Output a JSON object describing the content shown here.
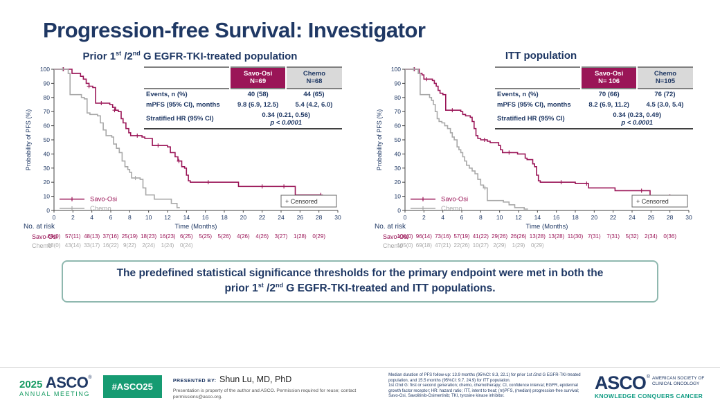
{
  "slide": {
    "title": "Progression-free Survival: Investigator"
  },
  "colors": {
    "navy": "#1F3864",
    "maroon": "#9A1557",
    "chemo_gray": "#A8A8A8",
    "header_gray": "#D9D9D9",
    "green": "#169B72",
    "teal": "#0E9B82"
  },
  "panels": [
    {
      "subtitle_parts": {
        "a": "Prior 1",
        "sup1": "st",
        "b": " /2",
        "sup2": "nd",
        "c": " G EGFR-TKI-treated population"
      },
      "table": {
        "col1": {
          "name": "Savo-Osi",
          "n": "N=69"
        },
        "col2": {
          "name": "Chemo",
          "n": "N=68"
        },
        "rows": [
          {
            "label": "Events, n (%)",
            "v1": "40 (58)",
            "v2": "44 (65)"
          },
          {
            "label": "mPFS (95% CI), months",
            "v1": "9.8 (6.9, 12.5)",
            "v2": "5.4 (4.2, 6.0)"
          },
          {
            "label": "Stratified HR (95% CI)",
            "span": "0.34 (0.21, 0.56)",
            "p": "p < 0.0001"
          }
        ]
      }
    },
    {
      "subtitle_parts": {
        "c": "ITT population"
      },
      "table": {
        "col1": {
          "name": "Savo-Osi",
          "n": "N= 106"
        },
        "col2": {
          "name": "Chemo",
          "n": "N=105"
        },
        "rows": [
          {
            "label": "Events, n (%)",
            "v1": "70 (66)",
            "v2": "76 (72)"
          },
          {
            "label": "mPFS (95% CI), months",
            "v1": "8.2 (6.9, 11.2)",
            "v2": "4.5 (3.0, 5.4)"
          },
          {
            "label": "Stratified HR (95% CI)",
            "span": "0.34 (0.23, 0.49)",
            "p": "p < 0.0001"
          }
        ]
      }
    }
  ],
  "chart_data": [
    {
      "type": "line",
      "subtype": "kaplan-meier-step",
      "title": "Prior 1st/2nd G EGFR-TKI-treated population",
      "xlabel": "Time (Months)",
      "ylabel": "Probability of PFS (%)",
      "xlim": [
        0,
        30
      ],
      "ylim": [
        0,
        100
      ],
      "xtick_step": 2,
      "ytick_step": 10,
      "grid": false,
      "legend_position": "inside-bottom-left",
      "censored_label": "+ Censored",
      "series": [
        {
          "name": "Savo-Osi",
          "color": "#9A1557",
          "steps": [
            [
              0,
              100
            ],
            [
              1.9,
              97
            ],
            [
              2.8,
              95
            ],
            [
              3.1,
              93
            ],
            [
              3.4,
              90
            ],
            [
              3.7,
              88
            ],
            [
              4.1,
              87
            ],
            [
              4.4,
              76
            ],
            [
              5.9,
              75
            ],
            [
              6.2,
              73
            ],
            [
              6.5,
              71
            ],
            [
              6.8,
              70
            ],
            [
              7.1,
              65
            ],
            [
              7.3,
              62
            ],
            [
              7.6,
              58
            ],
            [
              7.9,
              55
            ],
            [
              8.1,
              53
            ],
            [
              9.3,
              52
            ],
            [
              9.6,
              51
            ],
            [
              10.4,
              46
            ],
            [
              12.0,
              45
            ],
            [
              12.3,
              41
            ],
            [
              12.8,
              38
            ],
            [
              13.1,
              35
            ],
            [
              13.5,
              31
            ],
            [
              13.8,
              30
            ],
            [
              14.0,
              25
            ],
            [
              14.2,
              21
            ],
            [
              14.4,
              20
            ],
            [
              19.5,
              17
            ],
            [
              25.5,
              11
            ],
            [
              28.2,
              11
            ]
          ],
          "censors": [
            [
              1.0,
              100
            ],
            [
              3.7,
              88
            ],
            [
              5.0,
              76
            ],
            [
              6.4,
              71
            ],
            [
              8.8,
              53
            ],
            [
              11.0,
              46
            ],
            [
              13.2,
              35
            ],
            [
              16.3,
              20
            ],
            [
              22.0,
              17
            ],
            [
              24.3,
              17
            ],
            [
              28.2,
              11
            ]
          ]
        },
        {
          "name": "Chemo",
          "color": "#A8A8A8",
          "steps": [
            [
              0,
              100
            ],
            [
              1.5,
              97
            ],
            [
              1.7,
              82
            ],
            [
              2.9,
              80
            ],
            [
              3.2,
              79
            ],
            [
              3.5,
              69
            ],
            [
              3.8,
              68
            ],
            [
              4.6,
              67
            ],
            [
              4.9,
              62
            ],
            [
              5.2,
              57
            ],
            [
              5.5,
              53
            ],
            [
              6.1,
              52
            ],
            [
              6.3,
              47
            ],
            [
              6.6,
              44
            ],
            [
              6.9,
              41
            ],
            [
              7.2,
              35
            ],
            [
              7.5,
              31
            ],
            [
              7.8,
              29
            ],
            [
              8.0,
              27
            ],
            [
              8.2,
              23
            ],
            [
              9.1,
              22
            ],
            [
              9.4,
              16
            ],
            [
              9.7,
              11
            ],
            [
              10.6,
              8
            ],
            [
              12.4,
              5
            ],
            [
              13.0,
              2
            ],
            [
              13.3,
              2
            ]
          ],
          "censors": [
            [
              0.9,
              100
            ],
            [
              8.6,
              23
            ]
          ]
        }
      ],
      "no_at_risk": {
        "label": "No. at risk",
        "tick_step": 2,
        "rows": [
          {
            "name": "Savo-Osi",
            "color": "#9A1557",
            "values": [
              "69(0)",
              "57(11)",
              "48(13)",
              "37(16)",
              "25(19)",
              "18(23)",
              "16(23)",
              "6(25)",
              "5(25)",
              "5(26)",
              "4(26)",
              "4(26)",
              "3(27)",
              "1(28)",
              "0(29)"
            ]
          },
          {
            "name": "Chemo",
            "color": "#A8A8A8",
            "values": [
              "68(0)",
              "43(14)",
              "33(17)",
              "16(22)",
              "9(22)",
              "2(24)",
              "1(24)",
              "0(24)"
            ]
          }
        ]
      }
    },
    {
      "type": "line",
      "subtype": "kaplan-meier-step",
      "title": "ITT population",
      "xlabel": "Time (Months)",
      "ylabel": "Probability of PFS (%)",
      "xlim": [
        0,
        30
      ],
      "ylim": [
        0,
        100
      ],
      "xtick_step": 2,
      "ytick_step": 10,
      "grid": false,
      "legend_position": "inside-bottom-left",
      "censored_label": "+ Censored",
      "series": [
        {
          "name": "Savo-Osi",
          "color": "#9A1557",
          "steps": [
            [
              0,
              100
            ],
            [
              1.5,
              97
            ],
            [
              1.8,
              96
            ],
            [
              2.0,
              93
            ],
            [
              2.9,
              92
            ],
            [
              3.1,
              90
            ],
            [
              3.3,
              88
            ],
            [
              3.5,
              85
            ],
            [
              3.7,
              83
            ],
            [
              4.0,
              82
            ],
            [
              4.3,
              71
            ],
            [
              5.9,
              70
            ],
            [
              6.1,
              68
            ],
            [
              6.4,
              67
            ],
            [
              6.9,
              66
            ],
            [
              7.1,
              63
            ],
            [
              7.3,
              58
            ],
            [
              7.5,
              53
            ],
            [
              7.7,
              51
            ],
            [
              8.0,
              50
            ],
            [
              8.7,
              49
            ],
            [
              9.0,
              48
            ],
            [
              9.9,
              46
            ],
            [
              10.1,
              43
            ],
            [
              10.3,
              41
            ],
            [
              11.9,
              40
            ],
            [
              12.7,
              37
            ],
            [
              12.9,
              36
            ],
            [
              13.5,
              33
            ],
            [
              13.7,
              31
            ],
            [
              13.9,
              25
            ],
            [
              14.1,
              21
            ],
            [
              14.3,
              20
            ],
            [
              18.0,
              19
            ],
            [
              19.4,
              16
            ],
            [
              22.2,
              14
            ],
            [
              25.9,
              10
            ],
            [
              28.0,
              10
            ]
          ],
          "censors": [
            [
              1.0,
              100
            ],
            [
              2.3,
              93
            ],
            [
              5.0,
              71
            ],
            [
              8.4,
              50
            ],
            [
              11.0,
              41
            ],
            [
              16.5,
              20
            ],
            [
              19.2,
              19
            ],
            [
              25.0,
              14
            ],
            [
              28.0,
              10
            ]
          ]
        },
        {
          "name": "Chemo",
          "color": "#A8A8A8",
          "steps": [
            [
              0,
              100
            ],
            [
              1.4,
              97
            ],
            [
              1.6,
              82
            ],
            [
              2.6,
              80
            ],
            [
              2.8,
              78
            ],
            [
              3.0,
              75
            ],
            [
              3.2,
              70
            ],
            [
              3.4,
              65
            ],
            [
              3.6,
              63
            ],
            [
              3.9,
              62
            ],
            [
              4.2,
              60
            ],
            [
              4.5,
              58
            ],
            [
              4.8,
              55
            ],
            [
              5.0,
              52
            ],
            [
              5.2,
              50
            ],
            [
              5.5,
              45
            ],
            [
              5.7,
              43
            ],
            [
              5.9,
              41
            ],
            [
              6.1,
              38
            ],
            [
              6.3,
              35
            ],
            [
              6.5,
              32
            ],
            [
              6.8,
              30
            ],
            [
              7.1,
              28
            ],
            [
              7.4,
              26
            ],
            [
              7.7,
              22
            ],
            [
              8.0,
              18
            ],
            [
              8.3,
              16
            ],
            [
              8.7,
              7
            ],
            [
              10.4,
              6
            ],
            [
              11.0,
              4
            ],
            [
              11.6,
              2
            ],
            [
              12.2,
              2
            ],
            [
              12.6,
              1
            ],
            [
              13.0,
              1
            ]
          ],
          "censors": [
            [
              0.9,
              100
            ],
            [
              8.45,
              16
            ]
          ]
        }
      ],
      "no_at_risk": {
        "label": "No. at risk",
        "tick_step": 2,
        "rows": [
          {
            "name": "Savo-Osi",
            "color": "#9A1557",
            "values": [
              "106(0)",
              "96(14)",
              "73(16)",
              "57(19)",
              "41(22)",
              "29(26)",
              "26(26)",
              "13(28)",
              "13(28)",
              "11(30)",
              "7(31)",
              "7(31)",
              "5(32)",
              "2(34)",
              "0(36)"
            ]
          },
          {
            "name": "Chemo",
            "color": "#A8A8A8",
            "values": [
              "105(0)",
              "69(18)",
              "47(21)",
              "22(26)",
              "10(27)",
              "2(29)",
              "1(29)",
              "0(29)"
            ]
          }
        ]
      }
    }
  ],
  "callout": {
    "line1": "The predefined statistical significance thresholds for the primary endpoint were met in both the",
    "line2_parts": {
      "a": "prior 1",
      "sup1": "st",
      "b": " /2",
      "sup2": "nd",
      "c": " G EGFR-TKI-treated and ITT populations."
    }
  },
  "footer": {
    "logo": {
      "year": "2025",
      "asco": "ASCO",
      "reg": "®",
      "meeting": "ANNUAL MEETING"
    },
    "hashtag": "#ASCO25",
    "presented_by_label": "PRESENTED BY:",
    "presenter": "Shun Lu, MD, PhD",
    "permission": "Presentation is property of the author and ASCO. Permission required for reuse; contact permissions@asco.org.",
    "footnote1": "Median duration of PFS follow-up: 13.9 months (95%CI: 8.3, 22.1) for prior 1st /2nd G EGFR-TKI-treated population, and 15.5 months (95%CI: 9.7, 24.9) for ITT population.",
    "footnote2": "1st /2nd G: first or second generation; chemo, chemotherapy; CI, confidence interval; EGFR, epidermal growth factor receptor; HR: hazard ratio; ITT, intent to treat; (m)PFS, (median) progression-free survival; Savo-Osi, Savolitinib-Osimertinib; TKI, tyrosine kinase inhibitor.",
    "asco_logo": {
      "name": "ASCO",
      "reg": "®",
      "society": "AMERICAN SOCIETY OF CLINICAL ONCOLOGY",
      "tagline": "KNOWLEDGE CONQUERS CANCER"
    }
  }
}
